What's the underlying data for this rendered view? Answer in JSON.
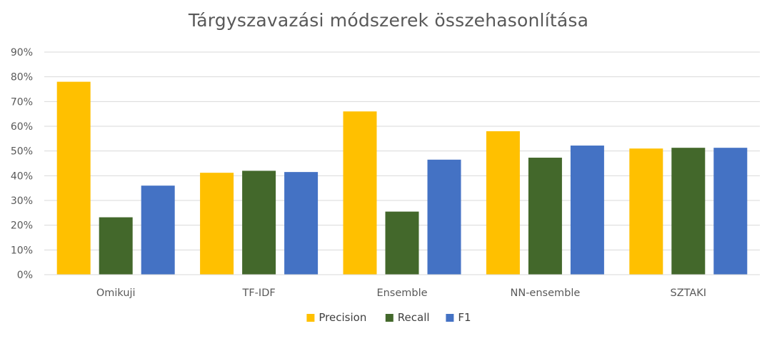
{
  "chart_data": {
    "type": "bar",
    "title": "Tárgyszavazási módszerek összehasonlítása",
    "xlabel": "",
    "ylabel": "",
    "categories": [
      "Omikuji",
      "TF-IDF",
      "Ensemble",
      "NN-ensemble",
      "SZTAKI"
    ],
    "series": [
      {
        "name": "Precision",
        "color": "#FFC000",
        "values": [
          78,
          41.2,
          66,
          58,
          51
        ]
      },
      {
        "name": "Recall",
        "color": "#43682B",
        "values": [
          23.2,
          42,
          25.5,
          47.3,
          51.3
        ]
      },
      {
        "name": "F1",
        "color": "#4472C4",
        "values": [
          36,
          41.5,
          46.5,
          52.2,
          51.3
        ]
      }
    ],
    "ylim": [
      0,
      90
    ],
    "yticks": [
      0,
      10,
      20,
      30,
      40,
      50,
      60,
      70,
      80,
      90
    ],
    "ytick_labels": [
      "0%",
      "10%",
      "20%",
      "30%",
      "40%",
      "50%",
      "60%",
      "70%",
      "80%",
      "90%"
    ],
    "grid": true,
    "legend_position": "bottom"
  }
}
